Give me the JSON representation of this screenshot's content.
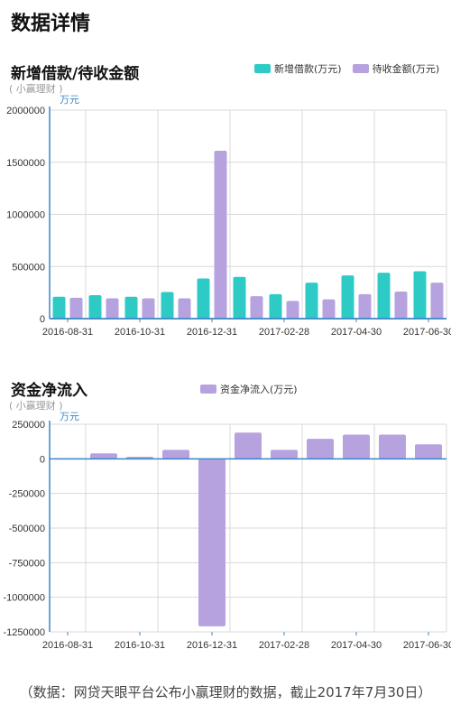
{
  "page_title": "数据详情",
  "footer_note": "（数据：网贷天眼平台公布小赢理财的数据，截止2017年7月30日）",
  "colors": {
    "teal": "#2ecbc6",
    "purple": "#b7a2e0",
    "axis": "#3a86c8",
    "grid": "#d9d9d9"
  },
  "chart_data": [
    {
      "type": "bar",
      "title": "新增借款/待收金额",
      "subtitle": "( 小赢理财 )",
      "unit": "万元",
      "categories": [
        "2016-08-31",
        "2016-09-30",
        "2016-10-31",
        "2016-11-30",
        "2016-12-31",
        "2017-01-31",
        "2017-02-28",
        "2017-03-31",
        "2017-04-30",
        "2017-05-31",
        "2017-06-30"
      ],
      "x_tick_labels": [
        "2016-08-31",
        "2016-10-31",
        "2016-12-31",
        "2017-02-28",
        "2017-04-30",
        "2017-06-30"
      ],
      "y_ticks": [
        0,
        500000,
        1000000,
        1500000,
        2000000
      ],
      "ylim": [
        0,
        2000000
      ],
      "legend_position": "top-right",
      "grid": true,
      "series": [
        {
          "name": "新增借款(万元)",
          "color": "#2ecbc6",
          "values": [
            210000,
            225000,
            210000,
            255000,
            385000,
            400000,
            235000,
            345000,
            415000,
            440000,
            455000
          ]
        },
        {
          "name": "待收金额(万元)",
          "color": "#b7a2e0",
          "values": [
            200000,
            195000,
            195000,
            195000,
            1610000,
            215000,
            170000,
            185000,
            235000,
            260000,
            345000
          ]
        }
      ]
    },
    {
      "type": "bar",
      "title": "资金净流入",
      "subtitle": "( 小赢理财 )",
      "unit": "万元",
      "categories": [
        "2016-08-31",
        "2016-09-30",
        "2016-10-31",
        "2016-11-30",
        "2016-12-31",
        "2017-01-31",
        "2017-02-28",
        "2017-03-31",
        "2017-04-30",
        "2017-05-31",
        "2017-06-30"
      ],
      "x_tick_labels": [
        "2016-08-31",
        "2016-10-31",
        "2016-12-31",
        "2017-02-28",
        "2017-04-30",
        "2017-06-30"
      ],
      "y_ticks": [
        250000,
        0,
        -250000,
        -500000,
        -750000,
        -1000000,
        -1250000
      ],
      "ylim": [
        -1250000,
        250000
      ],
      "legend_position": "top-center",
      "grid": true,
      "series": [
        {
          "name": "资金净流入(万元)",
          "color": "#b7a2e0",
          "values": [
            5000,
            40000,
            15000,
            65000,
            -1210000,
            190000,
            65000,
            145000,
            175000,
            175000,
            105000
          ]
        }
      ]
    }
  ]
}
